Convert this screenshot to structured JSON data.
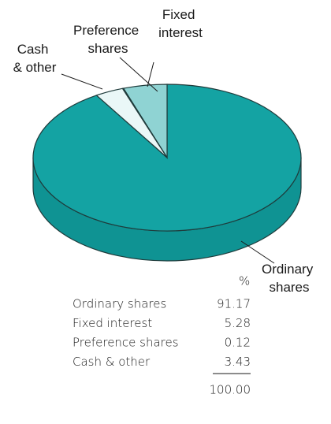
{
  "chart_data": {
    "type": "pie",
    "categories": [
      "Ordinary shares",
      "Fixed interest",
      "Preference shares",
      "Cash & other"
    ],
    "values": [
      91.17,
      5.28,
      0.12,
      3.43
    ],
    "colors": [
      "#14a3a3",
      "#8fd3d3",
      "#f4fbfb",
      "#eaf7f7"
    ],
    "side_color": "#0f9393",
    "table": {
      "unit_header": "%",
      "total": "100.00"
    }
  }
}
